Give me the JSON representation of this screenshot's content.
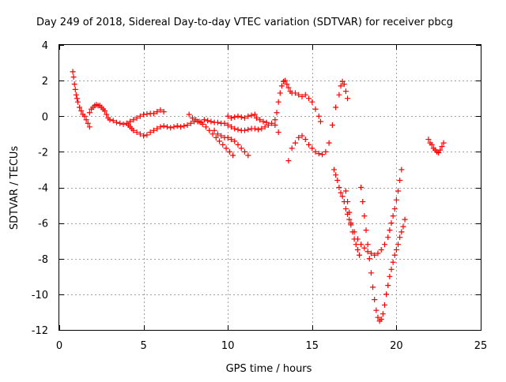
{
  "chart_data": {
    "type": "scatter",
    "title": "Day 249 of 2018, Sidereal Day-to-day VTEC variation (SDTVAR) for receiver pbcg",
    "xlabel": "GPS time / hours",
    "ylabel": "SDTVAR / TECUs",
    "xlim": [
      0,
      25
    ],
    "ylim": [
      -12,
      4
    ],
    "xticks": [
      0,
      5,
      10,
      15,
      20,
      25
    ],
    "yticks": [
      -12,
      -10,
      -8,
      -6,
      -4,
      -2,
      0,
      2,
      4
    ],
    "grid": true,
    "marker": "+",
    "color": "#ff0000",
    "series": [
      {
        "points": [
          [
            0.8,
            2.5
          ],
          [
            0.85,
            2.2
          ],
          [
            0.9,
            1.8
          ],
          [
            0.95,
            1.5
          ],
          [
            1.0,
            1.2
          ],
          [
            1.05,
            1.0
          ],
          [
            1.1,
            0.8
          ],
          [
            1.2,
            0.5
          ],
          [
            1.3,
            0.3
          ],
          [
            1.4,
            0.1
          ],
          [
            1.5,
            0.0
          ],
          [
            1.6,
            -0.2
          ],
          [
            1.7,
            -0.4
          ],
          [
            1.8,
            -0.6
          ],
          [
            1.8,
            0.2
          ],
          [
            1.9,
            0.4
          ],
          [
            2.0,
            0.5
          ],
          [
            2.1,
            0.6
          ],
          [
            2.2,
            0.65
          ],
          [
            2.3,
            0.6
          ],
          [
            2.4,
            0.6
          ],
          [
            2.5,
            0.5
          ],
          [
            2.6,
            0.4
          ],
          [
            2.7,
            0.3
          ],
          [
            2.8,
            0.1
          ],
          [
            2.9,
            -0.1
          ],
          [
            3.0,
            -0.2
          ],
          [
            3.2,
            -0.25
          ],
          [
            3.4,
            -0.35
          ],
          [
            3.6,
            -0.4
          ],
          [
            3.8,
            -0.45
          ],
          [
            4.0,
            -0.4
          ],
          [
            4.1,
            -0.5
          ],
          [
            4.2,
            -0.6
          ],
          [
            4.3,
            -0.7
          ],
          [
            4.4,
            -0.8
          ],
          [
            4.6,
            -0.9
          ],
          [
            4.8,
            -1.0
          ],
          [
            5.0,
            -1.1
          ],
          [
            5.2,
            -1.05
          ],
          [
            5.4,
            -0.9
          ],
          [
            5.6,
            -0.8
          ],
          [
            5.8,
            -0.7
          ],
          [
            6.0,
            -0.6
          ],
          [
            6.2,
            -0.55
          ],
          [
            6.4,
            -0.6
          ],
          [
            6.6,
            -0.65
          ],
          [
            6.8,
            -0.6
          ],
          [
            7.0,
            -0.55
          ],
          [
            7.2,
            -0.6
          ],
          [
            7.4,
            -0.55
          ],
          [
            7.6,
            -0.5
          ],
          [
            7.8,
            -0.4
          ],
          [
            8.0,
            -0.3
          ],
          [
            8.2,
            -0.3
          ],
          [
            8.4,
            -0.35
          ],
          [
            4.2,
            -0.3
          ],
          [
            4.4,
            -0.2
          ],
          [
            4.6,
            -0.1
          ],
          [
            4.8,
            0.0
          ],
          [
            5.0,
            0.1
          ],
          [
            5.2,
            0.12
          ],
          [
            5.4,
            0.15
          ],
          [
            5.6,
            0.15
          ],
          [
            5.8,
            0.25
          ],
          [
            6.0,
            0.35
          ],
          [
            6.2,
            0.25
          ],
          [
            7.7,
            0.1
          ],
          [
            7.9,
            -0.1
          ],
          [
            8.1,
            -0.2
          ],
          [
            8.3,
            -0.3
          ],
          [
            8.5,
            -0.45
          ],
          [
            8.7,
            -0.6
          ],
          [
            8.9,
            -0.8
          ],
          [
            9.1,
            -1.0
          ],
          [
            9.3,
            -1.2
          ],
          [
            9.5,
            -1.4
          ],
          [
            9.7,
            -1.6
          ],
          [
            9.9,
            -1.8
          ],
          [
            10.1,
            -2.0
          ],
          [
            10.3,
            -2.2
          ],
          [
            8.6,
            -0.2
          ],
          [
            8.8,
            -0.25
          ],
          [
            9.0,
            -0.3
          ],
          [
            9.2,
            -0.35
          ],
          [
            9.4,
            -0.35
          ],
          [
            9.6,
            -0.4
          ],
          [
            9.8,
            -0.4
          ],
          [
            10.0,
            -0.5
          ],
          [
            10.2,
            -0.6
          ],
          [
            10.4,
            -0.7
          ],
          [
            10.6,
            -0.75
          ],
          [
            10.8,
            -0.8
          ],
          [
            11.0,
            -0.8
          ],
          [
            11.2,
            -0.75
          ],
          [
            11.4,
            -0.7
          ],
          [
            11.6,
            -0.7
          ],
          [
            11.8,
            -0.75
          ],
          [
            12.0,
            -0.7
          ],
          [
            12.2,
            -0.6
          ],
          [
            12.4,
            -0.5
          ],
          [
            12.6,
            -0.4
          ],
          [
            12.8,
            -0.5
          ],
          [
            13.0,
            -0.9
          ],
          [
            9.2,
            -0.8
          ],
          [
            9.4,
            -1.0
          ],
          [
            9.6,
            -1.1
          ],
          [
            9.8,
            -1.2
          ],
          [
            10.0,
            -1.2
          ],
          [
            10.2,
            -1.3
          ],
          [
            10.4,
            -1.4
          ],
          [
            10.6,
            -1.6
          ],
          [
            10.8,
            -1.8
          ],
          [
            11.0,
            -2.0
          ],
          [
            11.2,
            -2.2
          ],
          [
            10.0,
            0.0
          ],
          [
            10.2,
            -0.1
          ],
          [
            10.4,
            -0.05
          ],
          [
            10.6,
            0.0
          ],
          [
            10.8,
            -0.05
          ],
          [
            11.0,
            -0.1
          ],
          [
            11.2,
            0.0
          ],
          [
            11.4,
            0.05
          ],
          [
            11.6,
            0.1
          ],
          [
            11.7,
            -0.1
          ],
          [
            11.9,
            -0.2
          ],
          [
            12.1,
            -0.3
          ],
          [
            12.3,
            -0.35
          ],
          [
            12.8,
            -0.2
          ],
          [
            12.9,
            0.2
          ],
          [
            13.0,
            0.8
          ],
          [
            13.1,
            1.3
          ],
          [
            13.2,
            1.7
          ],
          [
            13.3,
            1.95
          ],
          [
            13.4,
            2.0
          ],
          [
            13.5,
            1.8
          ],
          [
            13.6,
            1.6
          ],
          [
            13.7,
            1.4
          ],
          [
            13.8,
            1.3
          ],
          [
            14.0,
            1.3
          ],
          [
            14.2,
            1.2
          ],
          [
            14.4,
            1.1
          ],
          [
            14.6,
            1.2
          ],
          [
            14.8,
            1.0
          ],
          [
            15.0,
            0.8
          ],
          [
            15.2,
            0.4
          ],
          [
            15.4,
            0.0
          ],
          [
            15.5,
            -0.3
          ],
          [
            13.6,
            -2.5
          ],
          [
            13.8,
            -1.8
          ],
          [
            14.0,
            -1.5
          ],
          [
            14.2,
            -1.2
          ],
          [
            14.4,
            -1.1
          ],
          [
            14.6,
            -1.3
          ],
          [
            14.8,
            -1.6
          ],
          [
            15.0,
            -1.8
          ],
          [
            15.2,
            -2.0
          ],
          [
            15.4,
            -2.1
          ],
          [
            15.6,
            -2.15
          ],
          [
            15.8,
            -2.0
          ],
          [
            16.0,
            -1.5
          ],
          [
            16.2,
            -0.5
          ],
          [
            16.4,
            0.5
          ],
          [
            16.6,
            1.2
          ],
          [
            16.7,
            1.7
          ],
          [
            16.8,
            1.95
          ],
          [
            16.9,
            1.8
          ],
          [
            17.0,
            1.4
          ],
          [
            17.1,
            1.0
          ],
          [
            16.3,
            -3.0
          ],
          [
            16.4,
            -3.3
          ],
          [
            16.5,
            -3.6
          ],
          [
            16.6,
            -4.0
          ],
          [
            16.7,
            -4.3
          ],
          [
            16.8,
            -4.5
          ],
          [
            16.9,
            -4.8
          ],
          [
            17.0,
            -5.2
          ],
          [
            17.1,
            -5.5
          ],
          [
            17.2,
            -5.8
          ],
          [
            17.3,
            -6.1
          ],
          [
            17.5,
            -6.5
          ],
          [
            17.7,
            -6.9
          ],
          [
            17.9,
            -7.2
          ],
          [
            18.1,
            -7.4
          ],
          [
            18.3,
            -7.6
          ],
          [
            18.5,
            -7.7
          ],
          [
            18.7,
            -7.8
          ],
          [
            18.9,
            -7.7
          ],
          [
            19.1,
            -7.5
          ],
          [
            19.3,
            -7.2
          ],
          [
            19.5,
            -6.8
          ],
          [
            19.6,
            -6.4
          ],
          [
            19.7,
            -6.0
          ],
          [
            19.8,
            -5.6
          ],
          [
            19.9,
            -5.2
          ],
          [
            20.0,
            -4.7
          ],
          [
            20.1,
            -4.2
          ],
          [
            20.2,
            -3.6
          ],
          [
            20.3,
            -3.0
          ],
          [
            17.0,
            -4.2
          ],
          [
            17.1,
            -4.8
          ],
          [
            17.2,
            -5.4
          ],
          [
            17.3,
            -6.0
          ],
          [
            17.4,
            -6.5
          ],
          [
            17.5,
            -6.9
          ],
          [
            17.6,
            -7.2
          ],
          [
            17.7,
            -7.5
          ],
          [
            17.8,
            -7.8
          ],
          [
            17.9,
            -4.0
          ],
          [
            18.0,
            -4.8
          ],
          [
            18.1,
            -5.6
          ],
          [
            18.2,
            -6.4
          ],
          [
            18.3,
            -7.2
          ],
          [
            18.4,
            -8.0
          ],
          [
            18.5,
            -8.8
          ],
          [
            18.6,
            -9.6
          ],
          [
            18.7,
            -10.3
          ],
          [
            18.8,
            -10.9
          ],
          [
            18.9,
            -11.3
          ],
          [
            19.0,
            -11.5
          ],
          [
            19.1,
            -11.4
          ],
          [
            19.2,
            -11.1
          ],
          [
            19.3,
            -10.6
          ],
          [
            19.4,
            -10.0
          ],
          [
            19.5,
            -9.5
          ],
          [
            19.6,
            -9.0
          ],
          [
            19.7,
            -8.6
          ],
          [
            19.8,
            -8.2
          ],
          [
            19.9,
            -7.8
          ],
          [
            20.0,
            -7.5
          ],
          [
            20.1,
            -7.2
          ],
          [
            20.2,
            -6.8
          ],
          [
            20.3,
            -6.5
          ],
          [
            20.4,
            -6.2
          ],
          [
            20.5,
            -5.8
          ],
          [
            21.9,
            -1.3
          ],
          [
            22.0,
            -1.5
          ],
          [
            22.1,
            -1.6
          ],
          [
            22.2,
            -1.8
          ],
          [
            22.3,
            -1.9
          ],
          [
            22.4,
            -2.0
          ],
          [
            22.5,
            -2.05
          ],
          [
            22.6,
            -1.9
          ],
          [
            22.7,
            -1.7
          ],
          [
            22.8,
            -1.5
          ]
        ]
      }
    ]
  }
}
